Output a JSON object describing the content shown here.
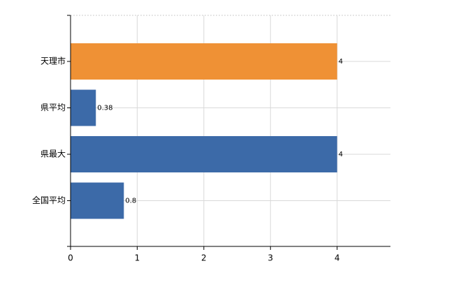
{
  "chart_data": {
    "type": "barh",
    "categories": [
      "天理市",
      "県平均",
      "県最大",
      "全国平均"
    ],
    "values": [
      4,
      0.38,
      4,
      0.8
    ],
    "colors": [
      "#ef9135",
      "#3c6aa8",
      "#3c6aa8",
      "#3c6aa8"
    ],
    "xlim": [
      0,
      4.8
    ],
    "xticks": [
      0,
      1,
      2,
      3,
      4
    ],
    "grid": true
  }
}
